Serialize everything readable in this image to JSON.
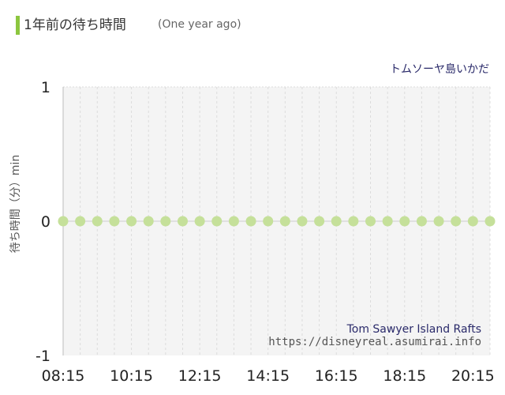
{
  "header": {
    "title": "1年前の待ち時間",
    "subtitle": "(One year ago)"
  },
  "chart_data": {
    "type": "scatter",
    "attraction_ja": "トムソーヤ島いかだ",
    "attraction_en": "Tom Sawyer Island Rafts",
    "source": "https://disneyreal.asumirai.info",
    "ylabel": "待ち時間（分）min",
    "ylim": [
      -1,
      1
    ],
    "y_ticks": [
      "1",
      "0",
      "-1"
    ],
    "x_ticks": [
      "08:15",
      "10:15",
      "12:15",
      "14:15",
      "16:15",
      "18:15",
      "20:15"
    ],
    "x": [
      "08:15",
      "08:45",
      "09:15",
      "09:45",
      "10:15",
      "10:45",
      "11:15",
      "11:45",
      "12:15",
      "12:45",
      "13:15",
      "13:45",
      "14:15",
      "14:45",
      "15:15",
      "15:45",
      "16:15",
      "16:45",
      "17:15",
      "17:45",
      "18:15",
      "18:45",
      "19:15",
      "19:45",
      "20:15",
      "20:45"
    ],
    "values": [
      0,
      0,
      0,
      0,
      0,
      0,
      0,
      0,
      0,
      0,
      0,
      0,
      0,
      0,
      0,
      0,
      0,
      0,
      0,
      0,
      0,
      0,
      0,
      0,
      0,
      0
    ],
    "colors": {
      "point": "#c5e09a",
      "plot_bg": "#f4f4f4",
      "grid": "#dcdcdc",
      "zero_line": "#cccccc"
    }
  }
}
